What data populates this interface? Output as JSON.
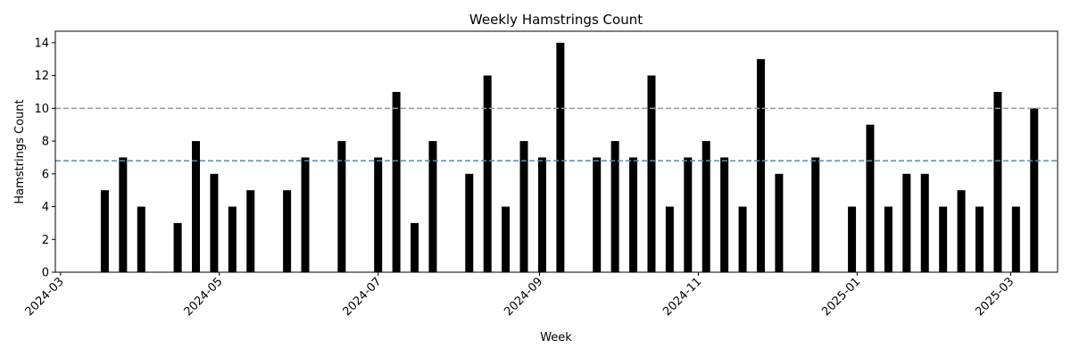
{
  "chart_data": {
    "type": "bar",
    "title": "Weekly Hamstrings Count",
    "xlabel": "Week",
    "ylabel": "Hamstrings Count",
    "ylim": [
      0,
      14.7
    ],
    "yticks": [
      0,
      2,
      4,
      6,
      8,
      10,
      12,
      14
    ],
    "xlim": [
      "2024-02-28",
      "2025-03-19"
    ],
    "xticks": [
      "2024-03",
      "2024-05",
      "2024-07",
      "2024-09",
      "2024-11",
      "2025-01",
      "2025-03"
    ],
    "bar_color": "#000000",
    "grid": false,
    "series": [
      {
        "x": [
          "2024-03-18",
          "2024-03-25",
          "2024-04-01",
          "2024-04-15",
          "2024-04-22",
          "2024-04-29",
          "2024-05-06",
          "2024-05-13",
          "2024-05-27",
          "2024-06-03",
          "2024-06-17",
          "2024-07-01",
          "2024-07-08",
          "2024-07-15",
          "2024-07-22",
          "2024-08-05",
          "2024-08-12",
          "2024-08-19",
          "2024-08-26",
          "2024-09-02",
          "2024-09-09",
          "2024-09-23",
          "2024-09-30",
          "2024-10-07",
          "2024-10-14",
          "2024-10-21",
          "2024-10-28",
          "2024-11-04",
          "2024-11-11",
          "2024-11-18",
          "2024-11-25",
          "2024-12-02",
          "2024-12-16",
          "2024-12-30",
          "2025-01-06",
          "2025-01-13",
          "2025-01-20",
          "2025-01-27",
          "2025-02-03",
          "2025-02-10",
          "2025-02-17",
          "2025-02-24",
          "2025-03-03",
          "2025-03-10"
        ],
        "values": [
          5,
          7,
          4,
          3,
          8,
          6,
          4,
          5,
          5,
          7,
          8,
          7,
          11,
          3,
          8,
          6,
          12,
          4,
          8,
          7,
          14,
          7,
          8,
          7,
          12,
          4,
          7,
          8,
          7,
          4,
          13,
          6,
          7,
          4,
          9,
          4,
          6,
          6,
          4,
          5,
          4,
          11,
          4,
          10
        ]
      }
    ],
    "reference_lines": [
      {
        "y": 10,
        "color": "#999999",
        "style": "dashed"
      },
      {
        "y": 6.8,
        "color": "#4a90b5",
        "style": "dashed"
      }
    ]
  }
}
